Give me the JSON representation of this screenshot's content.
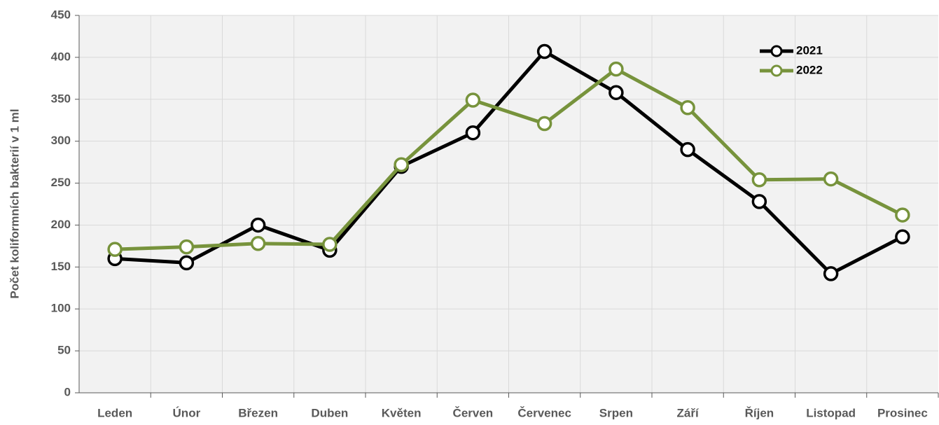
{
  "chart_data": {
    "type": "line",
    "y_label": "Počet koliformních bakterií v 1 ml",
    "categories": [
      "Leden",
      "Únor",
      "Březen",
      "Duben",
      "Květen",
      "Červen",
      "Červenec",
      "Srpen",
      "Září",
      "Říjen",
      "Listopad",
      "Prosinec"
    ],
    "series": [
      {
        "name": "2021",
        "color": "#000000",
        "values": [
          160,
          155,
          200,
          170,
          270,
          310,
          407,
          358,
          290,
          228,
          142,
          186
        ]
      },
      {
        "name": "2022",
        "color": "#77933c",
        "values": [
          171,
          174,
          178,
          177,
          272,
          349,
          321,
          386,
          340,
          254,
          255,
          212
        ]
      }
    ],
    "ylim": [
      0,
      450
    ],
    "yticks": [
      0,
      50,
      100,
      150,
      200,
      250,
      300,
      350,
      400,
      450
    ],
    "grid": true,
    "legend": "upper right"
  }
}
